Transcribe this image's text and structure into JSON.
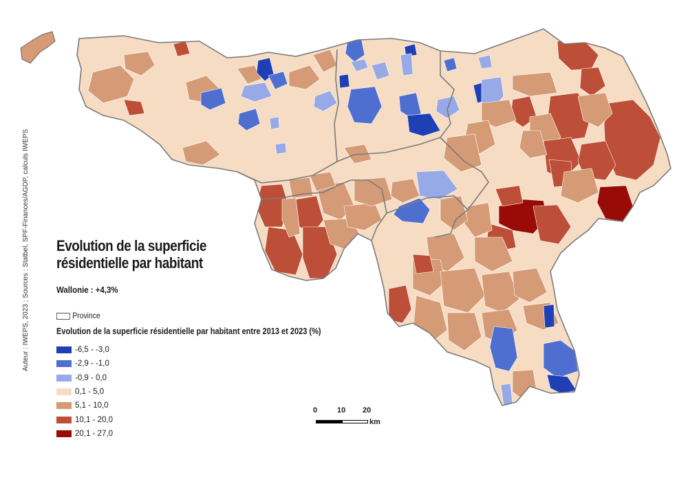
{
  "title": "Evolution de la superficie résidentielle par habitant",
  "subtitle": "Wallonie : +4,3%",
  "province_legend_label": "Province",
  "legend_title": "Evolution de la superficie résidentielle par habitant entre 2013 et 2023 (%)",
  "legend": [
    {
      "label": "-6,5 - -3,0",
      "color": "#1f3fb4"
    },
    {
      "label": "-2,9 - -1,0",
      "color": "#4f6fd0"
    },
    {
      "label": "-0,9 - 0,0",
      "color": "#97a9e6"
    },
    {
      "label": "0,1 - 5,0",
      "color": "#f6dcc3"
    },
    {
      "label": "5,1 - 10,0",
      "color": "#d59a76"
    },
    {
      "label": "10,1 - 20,0",
      "color": "#bd4e37"
    },
    {
      "label": "20,1 - 27,0",
      "color": "#980b06"
    }
  ],
  "source": "Auteur : IWEPS, 2023 ; Sources : Statbel, SPF-Finances/AGDP, calculs IWEPS",
  "scale": {
    "ticks": [
      "0",
      "10",
      "20"
    ],
    "unit": "km"
  }
}
